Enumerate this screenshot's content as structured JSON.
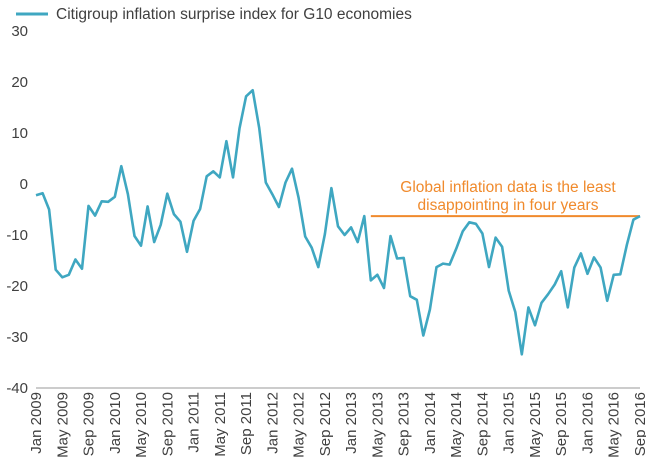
{
  "chart_data": {
    "type": "line",
    "title": "",
    "xlabel": "",
    "ylabel": "",
    "ylim": [
      -40,
      30
    ],
    "yticks": [
      30,
      20,
      10,
      0,
      -10,
      -20,
      -30,
      -40
    ],
    "grid": false,
    "legend_position": "top-left",
    "x_tick_labels": [
      "Jan 2009",
      "May 2009",
      "Sep 2009",
      "Jan 2010",
      "May 2010",
      "Sep 2010",
      "Jan 2011",
      "May 2011",
      "Sep 2011",
      "Jan 2012",
      "May 2012",
      "Sep 2012",
      "Jan 2013",
      "May 2013",
      "Sep 2013",
      "Jan 2014",
      "May 2014",
      "Sep 2014",
      "Jan 2015",
      "May 2015",
      "Sep 2015",
      "Jan 2016",
      "May 2016",
      "Sep 2016"
    ],
    "series": [
      {
        "name": "Citigroup inflation surprise index for G10 economies",
        "color": "#3fa7c1",
        "values": [
          -2.2,
          -1.8,
          -5.0,
          -16.8,
          -18.3,
          -17.8,
          -14.8,
          -16.6,
          -4.3,
          -6.2,
          -3.4,
          -3.5,
          -2.5,
          3.5,
          -2.0,
          -10.2,
          -12.1,
          -4.4,
          -11.4,
          -8.0,
          -1.9,
          -5.9,
          -7.4,
          -13.3,
          -7.2,
          -4.9,
          1.5,
          2.5,
          1.3,
          8.4,
          1.3,
          10.9,
          17.2,
          18.4,
          11.0,
          0.3,
          -2.0,
          -4.5,
          0.3,
          3.0,
          -2.7,
          -10.3,
          -12.5,
          -16.3,
          -9.8,
          -0.8,
          -8.3,
          -10.0,
          -8.5,
          -11.4,
          -6.3,
          -18.9,
          -17.8,
          -20.4,
          -10.2,
          -14.6,
          -14.5,
          -22.0,
          -22.7,
          -29.7,
          -24.6,
          -16.3,
          -15.6,
          -15.8,
          -12.7,
          -9.3,
          -7.5,
          -7.8,
          -9.7,
          -16.3,
          -10.5,
          -12.3,
          -20.9,
          -25.1,
          -33.4,
          -24.2,
          -27.7,
          -23.3,
          -21.6,
          -19.7,
          -17.1,
          -24.2,
          -16.4,
          -13.6,
          -17.6,
          -14.4,
          -16.4,
          -22.9,
          -17.8,
          -17.7,
          -11.9,
          -7.0,
          -6.3
        ]
      }
    ],
    "reference_line": {
      "value": -6.3,
      "color": "#f08a2c",
      "from_index": 51
    },
    "annotation": {
      "lines": [
        "Global inflation data is the least",
        "disappointing in four years"
      ],
      "color": "#f08a2c"
    }
  }
}
